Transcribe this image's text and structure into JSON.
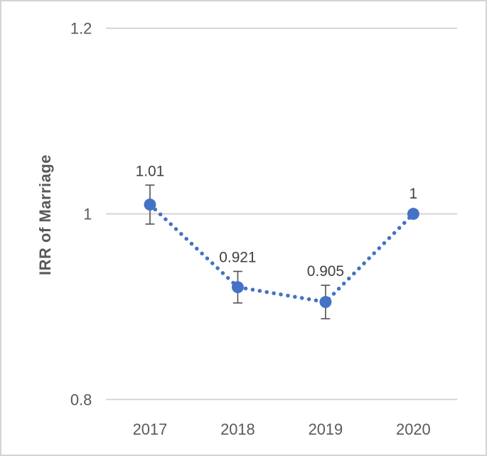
{
  "chart_data": {
    "type": "line",
    "title": "",
    "xlabel": "",
    "ylabel": "IRR of Marriage",
    "x": [
      "2017",
      "2018",
      "2019",
      "2020"
    ],
    "values": [
      1.01,
      0.921,
      0.905,
      1.0
    ],
    "data_labels": [
      "1.01",
      "0.921",
      "0.905",
      "1"
    ],
    "error_bars": [
      0.021,
      0.017,
      0.018,
      0
    ],
    "ylim": [
      0.8,
      1.2
    ],
    "yticks": [
      0.8,
      1.0,
      1.2
    ],
    "ytick_labels": [
      "0.8",
      "1",
      "1.2"
    ],
    "grid": true,
    "legend": "none",
    "line_style": "dotted",
    "marker": "circle",
    "accent_color": "#4472C4",
    "gridline_color": "#d0d0d0",
    "axis_text_color": "#595959",
    "data_label_color": "#404040",
    "error_bar_color": "#595959"
  }
}
